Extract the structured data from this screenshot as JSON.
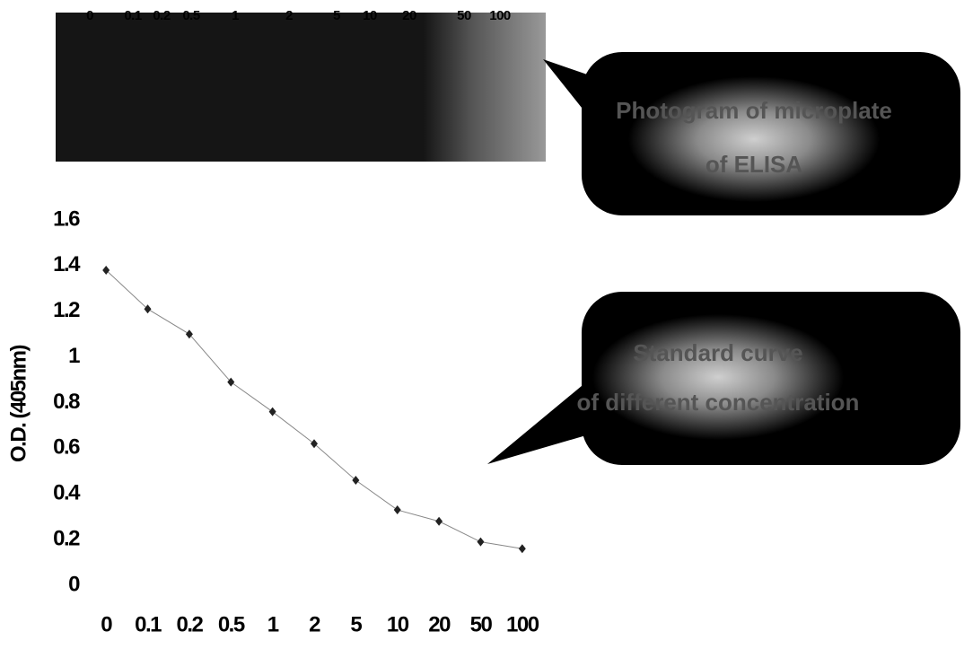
{
  "chart_data": {
    "type": "line",
    "ylabel": "O.D. (405nm)",
    "categories": [
      "0",
      "0.1",
      "0.2",
      "0.5",
      "1",
      "2",
      "5",
      "10",
      "20",
      "50",
      "100"
    ],
    "values": [
      1.38,
      1.21,
      1.1,
      0.89,
      0.76,
      0.62,
      0.46,
      0.33,
      0.28,
      0.19,
      0.16
    ],
    "color": "#222222",
    "line_color": "#888888",
    "ylim": [
      0,
      1.6
    ],
    "yticks": [
      0,
      0.2,
      0.4,
      0.6,
      0.8,
      1,
      1.2,
      1.4,
      1.6
    ],
    "callouts": [
      {
        "line1": "Photogram of microplate",
        "line2": "of ELISA"
      },
      {
        "line1": "Standard curve",
        "line2": "of different concentration"
      }
    ]
  }
}
